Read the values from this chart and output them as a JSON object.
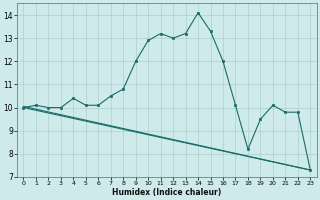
{
  "xlabel": "Humidex (Indice chaleur)",
  "background_color": "#ceeaea",
  "grid_color": "#aecece",
  "line_color": "#1a6b6b",
  "xlim": [
    -0.5,
    23.5
  ],
  "ylim": [
    7,
    14.5
  ],
  "xticks": [
    0,
    1,
    2,
    3,
    4,
    5,
    6,
    7,
    8,
    9,
    10,
    11,
    12,
    13,
    14,
    15,
    16,
    17,
    18,
    19,
    20,
    21,
    22,
    23
  ],
  "yticks": [
    7,
    8,
    9,
    10,
    11,
    12,
    13,
    14
  ],
  "series": [
    {
      "x": [
        0,
        23
      ],
      "y": [
        10.0,
        7.3
      ],
      "marker": null,
      "linestyle": "-"
    },
    {
      "x": [
        0,
        23
      ],
      "y": [
        10.05,
        7.3
      ],
      "marker": null,
      "linestyle": "-"
    },
    {
      "x": [
        0,
        1,
        2,
        3,
        4,
        5,
        6,
        7,
        8,
        9,
        10,
        11,
        12,
        13,
        14,
        15,
        16,
        17,
        18,
        19,
        20,
        21,
        22,
        23
      ],
      "y": [
        10.0,
        10.1,
        10.0,
        10.0,
        10.4,
        10.1,
        10.1,
        10.5,
        10.8,
        12.0,
        12.9,
        13.2,
        13.0,
        13.2,
        14.1,
        13.3,
        12.0,
        10.1,
        8.2,
        9.5,
        10.1,
        9.8,
        9.8,
        7.3
      ],
      "marker": "s",
      "markersize": 2.0,
      "linestyle": "-"
    }
  ]
}
